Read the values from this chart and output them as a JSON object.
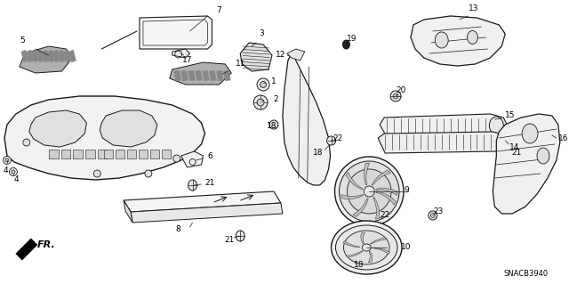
{
  "fig_width": 6.4,
  "fig_height": 3.19,
  "dpi": 100,
  "background_color": "#ffffff",
  "line_color": "#1a1a1a",
  "text_color": "#000000",
  "watermark": "SNACB3940",
  "font_size": 6.5
}
